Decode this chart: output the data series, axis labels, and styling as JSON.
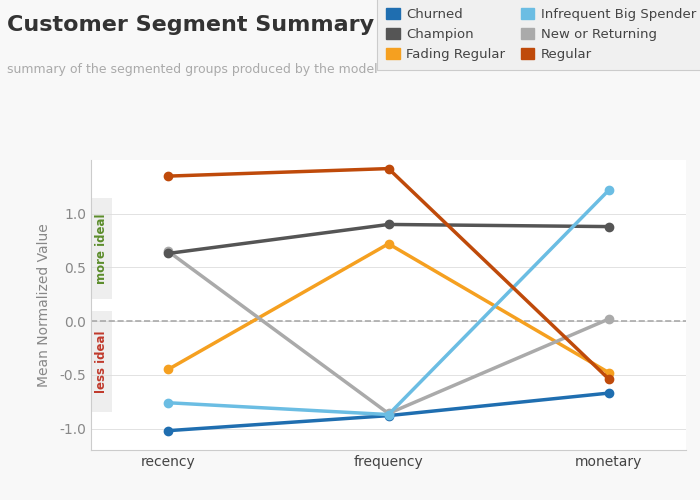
{
  "title": "Customer Segment Summary",
  "subtitle": "summary of the segmented groups produced by the model",
  "ylabel": "Mean Normalized Value",
  "categories": [
    "recency",
    "frequency",
    "monetary"
  ],
  "ylim": [
    -1.2,
    1.5
  ],
  "yticks": [
    -1.0,
    -0.5,
    0.0,
    0.5,
    1.0
  ],
  "series": [
    {
      "name": "Churned",
      "color": "#1F6EB0",
      "values": [
        -1.02,
        -0.88,
        -0.67
      ],
      "linewidth": 2.5,
      "marker": "o",
      "markersize": 6
    },
    {
      "name": "Fading Regular",
      "color": "#F5A020",
      "values": [
        -0.45,
        0.72,
        -0.48
      ],
      "linewidth": 2.5,
      "marker": "o",
      "markersize": 6
    },
    {
      "name": "New or Returning",
      "color": "#AAAAAA",
      "values": [
        0.65,
        -0.86,
        0.02
      ],
      "linewidth": 2.5,
      "marker": "o",
      "markersize": 6
    },
    {
      "name": "Champion",
      "color": "#555555",
      "values": [
        0.63,
        0.9,
        0.88
      ],
      "linewidth": 2.5,
      "marker": "o",
      "markersize": 6
    },
    {
      "name": "Infrequent Big Spender",
      "color": "#6BBDE3",
      "values": [
        -0.76,
        -0.87,
        1.22
      ],
      "linewidth": 2.5,
      "marker": "o",
      "markersize": 6
    },
    {
      "name": "Regular",
      "color": "#BF4A0A",
      "values": [
        1.35,
        1.42,
        -0.54
      ],
      "linewidth": 2.5,
      "marker": "o",
      "markersize": 6
    }
  ],
  "legend_order": [
    0,
    3,
    1,
    4,
    2,
    5
  ],
  "bg_color": "#F8F8F8",
  "plot_bg_color": "#FFFFFF",
  "grid_color": "#CCCCCC",
  "more_ideal_color": "#5B8C2A",
  "less_ideal_color": "#C0392B",
  "title_fontsize": 16,
  "subtitle_fontsize": 9,
  "axis_label_fontsize": 10,
  "tick_fontsize": 10,
  "legend_fontsize": 9.5
}
